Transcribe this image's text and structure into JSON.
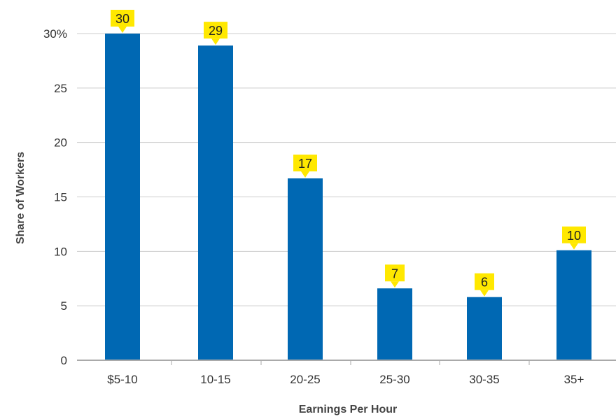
{
  "chart_data": {
    "type": "bar",
    "title": "",
    "xlabel": "Earnings Per Hour",
    "ylabel": "Share of Workers",
    "categories": [
      "$5-10",
      "10-15",
      "20-25",
      "25-30",
      "30-35",
      "35+"
    ],
    "values": [
      30,
      29,
      17,
      7,
      6,
      10
    ],
    "data_labels": [
      "30",
      "29",
      "17",
      "7",
      "6",
      "10"
    ],
    "bar_heights_estimated": [
      30,
      28.9,
      16.7,
      6.6,
      5.8,
      10.1
    ],
    "ylim": [
      0,
      30
    ],
    "yticks": [
      0,
      5,
      10,
      15,
      20,
      25,
      30
    ],
    "ytick_labels": [
      "0",
      "5",
      "10",
      "15",
      "20",
      "25",
      "30%"
    ],
    "grid": true,
    "legend": "none",
    "colors": {
      "bar": "#0068B3",
      "label_bg": "#FFE800",
      "grid": "#cccccc",
      "axis": "#aaaaaa"
    }
  }
}
